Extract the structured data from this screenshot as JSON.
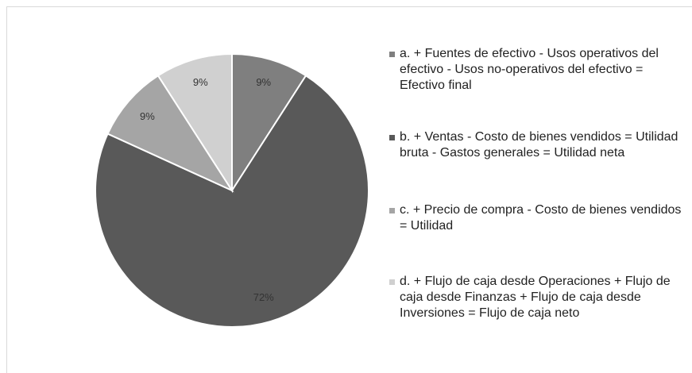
{
  "chart_data": {
    "type": "pie",
    "categories": [
      "a. + Fuentes de efectivo - Usos operativos del efectivo - Usos no-operativos del efectivo = Efectivo final",
      "b. + Ventas - Costo de bienes vendidos = Utilidad bruta - Gastos generales = Utilidad neta",
      "c. + Precio de compra - Costo de bienes vendidos = Utilidad",
      "d. + Flujo de caja desde Operaciones + Flujo de caja desde Finanzas + Flujo de caja desde Inversiones = Flujo de caja neto"
    ],
    "values": [
      9,
      72,
      9,
      9
    ],
    "value_labels": [
      "9%",
      "72%",
      "9%",
      "9%"
    ],
    "colors": [
      "#7f7f7f",
      "#595959",
      "#a5a5a5",
      "#d0d0d0"
    ],
    "legend": "right"
  }
}
